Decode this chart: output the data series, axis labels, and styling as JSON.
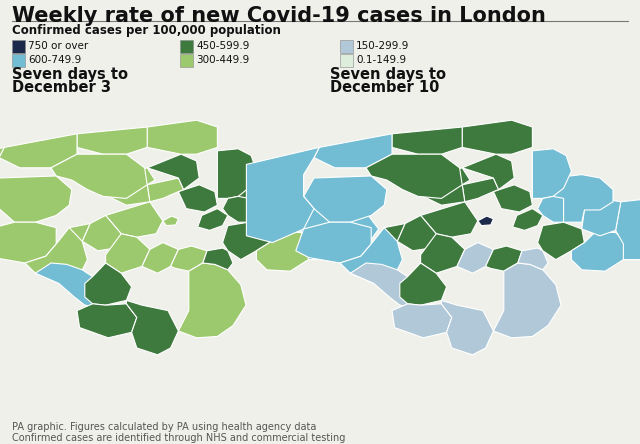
{
  "title": "Weekly rate of new Covid-19 cases in London",
  "subtitle": "Confirmed cases per 100,000 population",
  "map1_title_line1": "Seven days to",
  "map1_title_line2": "December 3",
  "map2_title_line1": "Seven days to",
  "map2_title_line2": "December 10",
  "footnote_line1": "PA graphic. Figures calculated by PA using health agency data",
  "footnote_line2": "Confirmed cases are identified through NHS and commercial testing",
  "legend": [
    {
      "label": "750 or over",
      "color": "#1b2a4a"
    },
    {
      "label": "600-749.9",
      "color": "#72bcd4"
    },
    {
      "label": "450-599.9",
      "color": "#3e7a3e"
    },
    {
      "label": "300-449.9",
      "color": "#9dc96e"
    },
    {
      "label": "150-299.9",
      "color": "#b0c8d8"
    },
    {
      "label": "0.1-149.9",
      "color": "#ddeedd"
    }
  ],
  "bg_color": "#f0f0eb",
  "title_color": "#111111",
  "subtitle_color": "#111111",
  "map_title_color": "#111111",
  "map1_boroughs": {
    "City of London": "300-449.9",
    "Westminster": "300-449.9",
    "Kensington": "300-449.9",
    "Hammersmith": "300-449.9",
    "Wandsworth": "300-449.9",
    "Lambeth": "300-449.9",
    "Southwark": "300-449.9",
    "Tower Hamlets": "450-599.9",
    "Hackney": "450-599.9",
    "Islington": "300-449.9",
    "Camden": "300-449.9",
    "Brent": "300-449.9",
    "Ealing": "300-449.9",
    "Hounslow": "300-449.9",
    "Richmond": "300-449.9",
    "Kingston": "600-749.9",
    "Merton": "450-599.9",
    "Sutton": "450-599.9",
    "Croydon": "450-599.9",
    "Bromley": "300-449.9",
    "Lewisham": "450-599.9",
    "Greenwich": "450-599.9",
    "Bexley": "300-449.9",
    "Newham": "450-599.9",
    "Barking": "450-599.9",
    "Havering": "600-749.9",
    "Redbridge": "450-599.9",
    "Waltham Forest": "450-599.9",
    "Haringey": "450-599.9",
    "Enfield": "300-449.9",
    "Barnet": "300-449.9",
    "Harrow": "300-449.9",
    "Hillingdon": "300-449.9"
  },
  "map2_boroughs": {
    "City of London": "750 or over",
    "Westminster": "450-599.9",
    "Kensington": "450-599.9",
    "Hammersmith": "450-599.9",
    "Wandsworth": "450-599.9",
    "Lambeth": "150-299.9",
    "Southwark": "450-599.9",
    "Tower Hamlets": "450-599.9",
    "Hackney": "450-599.9",
    "Islington": "450-599.9",
    "Camden": "450-599.9",
    "Brent": "450-599.9",
    "Ealing": "600-749.9",
    "Hounslow": "600-749.9",
    "Richmond": "600-749.9",
    "Kingston": "150-299.9",
    "Merton": "450-599.9",
    "Sutton": "150-299.9",
    "Croydon": "150-299.9",
    "Bromley": "150-299.9",
    "Lewisham": "150-299.9",
    "Greenwich": "450-599.9",
    "Bexley": "600-749.9",
    "Newham": "600-749.9",
    "Barking": "600-749.9",
    "Havering": "600-749.9",
    "Redbridge": "600-749.9",
    "Waltham Forest": "600-749.9",
    "Haringey": "450-599.9",
    "Enfield": "450-599.9",
    "Barnet": "450-599.9",
    "Harrow": "600-749.9",
    "Hillingdon": "600-749.9"
  }
}
